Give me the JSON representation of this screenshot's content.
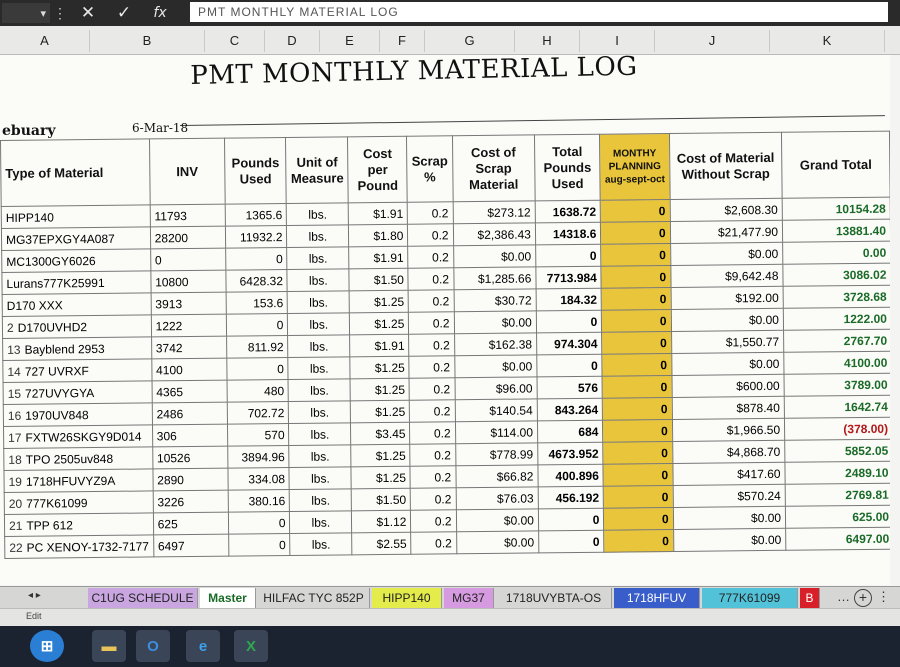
{
  "formula_bar": {
    "name_box": "",
    "cancel_glyph": "✕",
    "enter_glyph": "✓",
    "fx_label": "fx",
    "content": "PMT MONTHLY MATERIAL LOG"
  },
  "column_headers": [
    "A",
    "B",
    "C",
    "D",
    "E",
    "F",
    "G",
    "H",
    "I",
    "J",
    "K"
  ],
  "sheet": {
    "title": "PMT MONTHLY MATERIAL LOG",
    "month_label": "ebuary",
    "date": "6-Mar-18"
  },
  "table": {
    "headers": {
      "type": "Type of Material",
      "inv": "INV",
      "pounds_used": "Pounds Used",
      "uom": "Unit of Measure",
      "cost_per_pound": "Cost per Pound",
      "scrap_pct": "Scrap %",
      "cost_scrap": "Cost of Scrap Material",
      "total_pounds": "Total Pounds Used",
      "planning_title": "MONTHY PLANNING",
      "planning_sub": "aug-sept-oct",
      "cost_without_scrap": "Cost of Material Without Scrap",
      "grand_total": "Grand Total"
    },
    "rows": [
      {
        "num": "",
        "type": "HIPP140",
        "inv": "11793",
        "pounds": "1365.6",
        "uom": "lbs.",
        "cpp": "$1.91",
        "scrap": "0.2",
        "cost_scrap": "$273.12",
        "total": "1638.72",
        "plan": "0",
        "without": "$2,608.30",
        "grand": "10154.28",
        "neg": false
      },
      {
        "num": "",
        "type": "MG37EPXGY4A087",
        "inv": "28200",
        "pounds": "11932.2",
        "uom": "lbs.",
        "cpp": "$1.80",
        "scrap": "0.2",
        "cost_scrap": "$2,386.43",
        "total": "14318.6",
        "plan": "0",
        "without": "$21,477.90",
        "grand": "13881.40",
        "neg": false
      },
      {
        "num": "",
        "type": "MC1300GY6026",
        "inv": "0",
        "pounds": "0",
        "uom": "lbs.",
        "cpp": "$1.91",
        "scrap": "0.2",
        "cost_scrap": "$0.00",
        "total": "0",
        "plan": "0",
        "without": "$0.00",
        "grand": "0.00",
        "neg": false
      },
      {
        "num": "",
        "type": "Lurans777K25991",
        "inv": "10800",
        "pounds": "6428.32",
        "uom": "lbs.",
        "cpp": "$1.50",
        "scrap": "0.2",
        "cost_scrap": "$1,285.66",
        "total": "7713.984",
        "plan": "0",
        "without": "$9,642.48",
        "grand": "3086.02",
        "neg": false
      },
      {
        "num": "",
        "type": "D170 XXX",
        "inv": "3913",
        "pounds": "153.6",
        "uom": "lbs.",
        "cpp": "$1.25",
        "scrap": "0.2",
        "cost_scrap": "$30.72",
        "total": "184.32",
        "plan": "0",
        "without": "$192.00",
        "grand": "3728.68",
        "neg": false
      },
      {
        "num": "2",
        "type": "D170UVHD2",
        "inv": "1222",
        "pounds": "0",
        "uom": "lbs.",
        "cpp": "$1.25",
        "scrap": "0.2",
        "cost_scrap": "$0.00",
        "total": "0",
        "plan": "0",
        "without": "$0.00",
        "grand": "1222.00",
        "neg": false
      },
      {
        "num": "13",
        "type": "Bayblend 2953",
        "inv": "3742",
        "pounds": "811.92",
        "uom": "lbs.",
        "cpp": "$1.91",
        "scrap": "0.2",
        "cost_scrap": "$162.38",
        "total": "974.304",
        "plan": "0",
        "without": "$1,550.77",
        "grand": "2767.70",
        "neg": false
      },
      {
        "num": "14",
        "type": "727 UVRXF",
        "inv": "4100",
        "pounds": "0",
        "uom": "lbs.",
        "cpp": "$1.25",
        "scrap": "0.2",
        "cost_scrap": "$0.00",
        "total": "0",
        "plan": "0",
        "without": "$0.00",
        "grand": "4100.00",
        "neg": false
      },
      {
        "num": "15",
        "type": "727UVYGYA",
        "inv": "4365",
        "pounds": "480",
        "uom": "lbs.",
        "cpp": "$1.25",
        "scrap": "0.2",
        "cost_scrap": "$96.00",
        "total": "576",
        "plan": "0",
        "without": "$600.00",
        "grand": "3789.00",
        "neg": false
      },
      {
        "num": "16",
        "type": "1970UV848",
        "inv": "2486",
        "pounds": "702.72",
        "uom": "lbs.",
        "cpp": "$1.25",
        "scrap": "0.2",
        "cost_scrap": "$140.54",
        "total": "843.264",
        "plan": "0",
        "without": "$878.40",
        "grand": "1642.74",
        "neg": false
      },
      {
        "num": "17",
        "type": "FXTW26SKGY9D014",
        "inv": "306",
        "pounds": "570",
        "uom": "lbs.",
        "cpp": "$3.45",
        "scrap": "0.2",
        "cost_scrap": "$114.00",
        "total": "684",
        "plan": "0",
        "without": "$1,966.50",
        "grand": "(378.00)",
        "neg": true
      },
      {
        "num": "18",
        "type": "TPO 2505uv848",
        "inv": "10526",
        "pounds": "3894.96",
        "uom": "lbs.",
        "cpp": "$1.25",
        "scrap": "0.2",
        "cost_scrap": "$778.99",
        "total": "4673.952",
        "plan": "0",
        "without": "$4,868.70",
        "grand": "5852.05",
        "neg": false
      },
      {
        "num": "19",
        "type": "1718HFUVYZ9A",
        "inv": "2890",
        "pounds": "334.08",
        "uom": "lbs.",
        "cpp": "$1.25",
        "scrap": "0.2",
        "cost_scrap": "$66.82",
        "total": "400.896",
        "plan": "0",
        "without": "$417.60",
        "grand": "2489.10",
        "neg": false
      },
      {
        "num": "20",
        "type": "777K61099",
        "inv": "3226",
        "pounds": "380.16",
        "uom": "lbs.",
        "cpp": "$1.50",
        "scrap": "0.2",
        "cost_scrap": "$76.03",
        "total": "456.192",
        "plan": "0",
        "without": "$570.24",
        "grand": "2769.81",
        "neg": false
      },
      {
        "num": "21",
        "type": "TPP 612",
        "inv": "625",
        "pounds": "0",
        "uom": "lbs.",
        "cpp": "$1.12",
        "scrap": "0.2",
        "cost_scrap": "$0.00",
        "total": "0",
        "plan": "0",
        "without": "$0.00",
        "grand": "625.00",
        "neg": false
      },
      {
        "num": "22",
        "type": "PC XENOY-1732-7177",
        "inv": "6497",
        "pounds": "0",
        "uom": "lbs.",
        "cpp": "$2.55",
        "scrap": "0.2",
        "cost_scrap": "$0.00",
        "total": "0",
        "plan": "0",
        "without": "$0.00",
        "grand": "6497.00",
        "neg": false
      }
    ]
  },
  "tabs": [
    {
      "label": "C1UG SCHEDULE",
      "bg": "#c9a6e0",
      "color": "#222"
    },
    {
      "label": "Master",
      "bg": "#ffffff",
      "color": "#1b6b28"
    },
    {
      "label": "HILFAC TYC 852P",
      "bg": "#d6d6d4",
      "color": "#222"
    },
    {
      "label": "HIPP140",
      "bg": "#e3ec4a",
      "color": "#222"
    },
    {
      "label": "MG37",
      "bg": "#d59adf",
      "color": "#222"
    },
    {
      "label": "1718UVYBTA-OS",
      "bg": "#d6d6d4",
      "color": "#222"
    },
    {
      "label": "1718HFUV",
      "bg": "#3a5ec9",
      "color": "#ffffff"
    },
    {
      "label": "777K61099",
      "bg": "#52c2d8",
      "color": "#222"
    },
    {
      "label": "B",
      "bg": "#d8202a",
      "color": "#ffffff"
    }
  ],
  "tab_more": "…",
  "status_text": "Edit",
  "taskbar": {
    "items": [
      {
        "name": "start-icon",
        "glyph": "⊞",
        "bg": "#2a7fd4",
        "color": "#fff"
      },
      {
        "name": "file-explorer-icon",
        "glyph": "▬",
        "bg": "#3a4658",
        "color": "#e7c35a"
      },
      {
        "name": "outlook-icon",
        "glyph": "O",
        "bg": "#3a4658",
        "color": "#3d8de0"
      },
      {
        "name": "internet-explorer-icon",
        "glyph": "e",
        "bg": "#3a4658",
        "color": "#3ea0ea"
      },
      {
        "name": "excel-icon",
        "glyph": "X",
        "bg": "#3a4658",
        "color": "#2ea84f"
      }
    ]
  }
}
